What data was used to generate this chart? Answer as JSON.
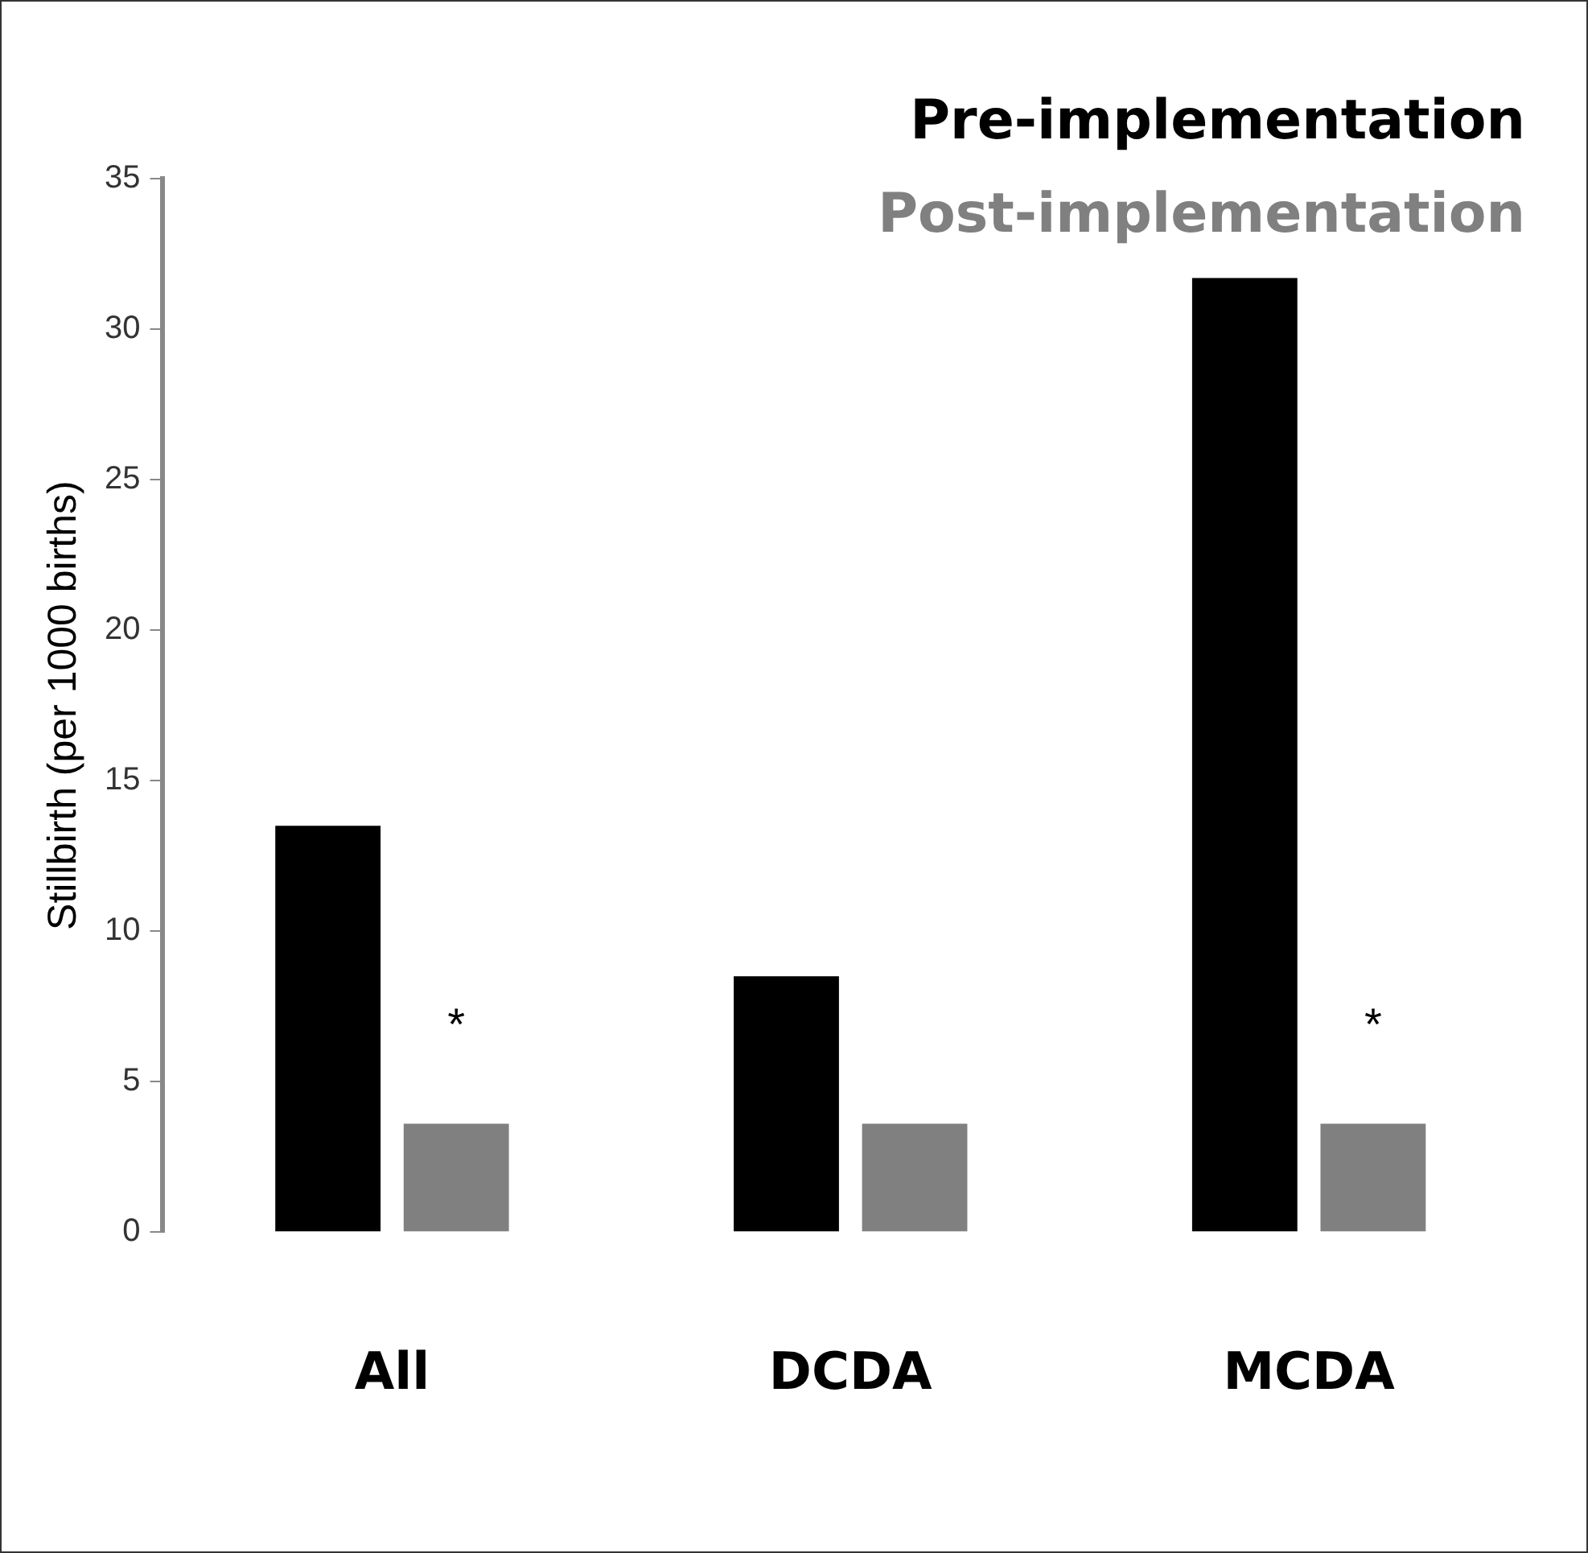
{
  "chart_data": {
    "type": "bar",
    "ylabel": "Stillbirth (per 1000 births)",
    "categories": [
      "All",
      "DCDA",
      "MCDA"
    ],
    "series": [
      {
        "name": "Pre-implementation",
        "color": "#000000",
        "values": [
          13.5,
          8.5,
          31.7
        ]
      },
      {
        "name": "Post-implementation",
        "color": "#808080",
        "values": [
          3.6,
          3.6,
          3.6
        ]
      }
    ],
    "ylim": [
      0,
      35
    ],
    "yticks": [
      0,
      5,
      10,
      15,
      20,
      25,
      30,
      35
    ],
    "grid": false,
    "legend": "top right",
    "annotations": [
      "*",
      "*"
    ]
  }
}
